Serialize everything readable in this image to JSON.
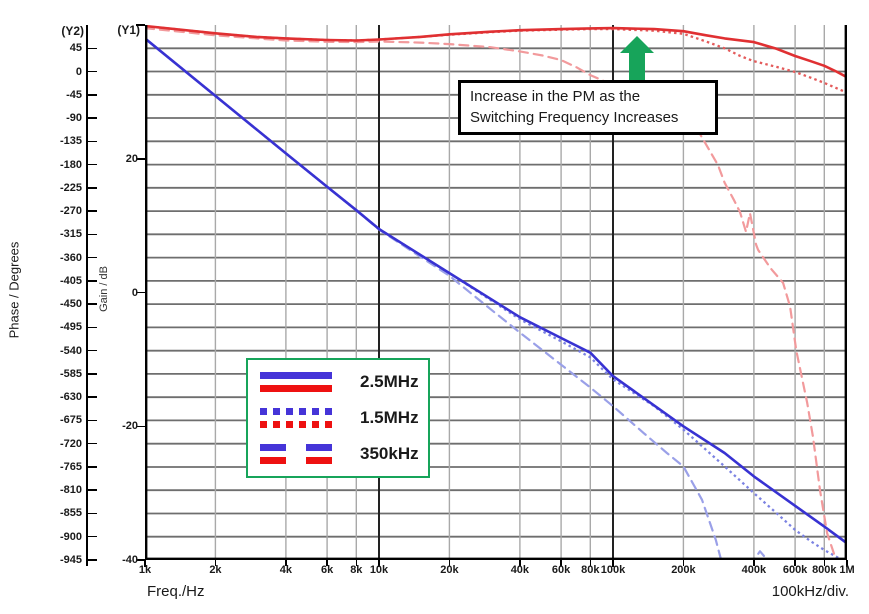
{
  "figure": {
    "y2_header": "(Y2)",
    "y1_header": "(Y1)",
    "phase_axis_title": "Phase / Degrees",
    "gain_axis_title": "Gain / dB",
    "x_axis_title": "Freq./Hz",
    "x_div_note": "100kHz/div."
  },
  "annotation": {
    "line1": "Increase in the PM as the",
    "line2": "Switching Frequency Increases"
  },
  "legend": {
    "entries": [
      {
        "label": "2.5MHz",
        "style": "solid"
      },
      {
        "label": "1.5MHz",
        "style": "dotted"
      },
      {
        "label": "350kHz",
        "style": "dashed"
      }
    ]
  },
  "colors": {
    "legend_blue": "#4534d8",
    "legend_red": "#ee1111",
    "green": "#17a45a",
    "grid_h": "#6e6e6e",
    "grid_v": "#a9a9a9",
    "grid_major": "#222222",
    "axis": "#000000",
    "gain_solid": "#3832d2",
    "gain_dotted": "#7b82e2",
    "gain_dashed": "#9aa0e8",
    "phase_solid": "#e03032",
    "phase_dotted": "#e45b5b",
    "phase_dashed": "#f29a9c"
  },
  "chart_data": {
    "type": "line",
    "title": "",
    "x_axis": {
      "label": "Freq./Hz",
      "scale": "log",
      "min": 1000,
      "max": 1000000,
      "ticks": [
        {
          "label": "1k",
          "f": 1000,
          "major": true
        },
        {
          "label": "2k",
          "f": 2000
        },
        {
          "label": "4k",
          "f": 4000
        },
        {
          "label": "6k",
          "f": 6000
        },
        {
          "label": "8k",
          "f": 8000
        },
        {
          "label": "10k",
          "f": 10000,
          "major": true
        },
        {
          "label": "20k",
          "f": 20000
        },
        {
          "label": "40k",
          "f": 40000
        },
        {
          "label": "60k",
          "f": 60000
        },
        {
          "label": "80k",
          "f": 80000
        },
        {
          "label": "100k",
          "f": 100000,
          "major": true
        },
        {
          "label": "200k",
          "f": 200000
        },
        {
          "label": "400k",
          "f": 400000
        },
        {
          "label": "600k",
          "f": 600000
        },
        {
          "label": "800k",
          "f": 800000
        },
        {
          "label": "1M",
          "f": 1000000,
          "major": true
        }
      ]
    },
    "y1_axis": {
      "label": "Gain / dB",
      "min": -40,
      "max": 40,
      "ticks": [
        {
          "v": 40,
          "label": ""
        },
        {
          "v": 20,
          "label": "20"
        },
        {
          "v": 0,
          "label": "0"
        },
        {
          "v": -20,
          "label": "-20"
        },
        {
          "v": -40,
          "label": "-40"
        }
      ]
    },
    "y2_axis": {
      "label": "Phase / Degrees",
      "min": -945,
      "max": 90,
      "tick_step": 45,
      "tick_values": [
        45,
        0,
        -45,
        -90,
        -135,
        -180,
        -225,
        -270,
        -315,
        -360,
        -405,
        -450,
        -495,
        -540,
        -585,
        -630,
        -675,
        -720,
        -765,
        -810,
        -855,
        -900,
        -945
      ]
    },
    "series": [
      {
        "name": "Gain 350kHz",
        "legend": "350kHz",
        "axis": "gain",
        "style": "dashed",
        "color": "#9aa0e8",
        "points": [
          [
            1000,
            38
          ],
          [
            2000,
            29.4
          ],
          [
            4000,
            20.8
          ],
          [
            6000,
            15.8
          ],
          [
            8000,
            12.3
          ],
          [
            10000,
            9.4
          ],
          [
            20000,
            2.5
          ],
          [
            30000,
            -2.5
          ],
          [
            40000,
            -6
          ],
          [
            60000,
            -10.8
          ],
          [
            80000,
            -14.2
          ],
          [
            100000,
            -17
          ],
          [
            135000,
            -21
          ],
          [
            170000,
            -24
          ],
          [
            200000,
            -26
          ],
          [
            240000,
            -31
          ],
          [
            275000,
            -37
          ],
          [
            295000,
            -41
          ],
          [
            340000,
            -43.5
          ],
          [
            385000,
            -40.8
          ],
          [
            425000,
            -38.7
          ],
          [
            470000,
            -40.5
          ],
          [
            510000,
            -44
          ]
        ]
      },
      {
        "name": "Gain 1.5MHz",
        "legend": "1.5MHz",
        "axis": "gain",
        "style": "dotted",
        "color": "#7b82e2",
        "points": [
          [
            1000,
            38
          ],
          [
            2000,
            29.4
          ],
          [
            4000,
            20.8
          ],
          [
            6000,
            15.8
          ],
          [
            8000,
            12.3
          ],
          [
            10000,
            9.5
          ],
          [
            20000,
            2.9
          ],
          [
            40000,
            -4
          ],
          [
            60000,
            -7.3
          ],
          [
            80000,
            -9.7
          ],
          [
            100000,
            -13
          ],
          [
            150000,
            -17
          ],
          [
            200000,
            -20.5
          ],
          [
            300000,
            -26
          ],
          [
            400000,
            -30
          ],
          [
            500000,
            -33
          ],
          [
            600000,
            -35.5
          ],
          [
            700000,
            -37.2
          ],
          [
            800000,
            -38.5
          ],
          [
            900000,
            -39.5
          ],
          [
            1000000,
            -40.5
          ]
        ]
      },
      {
        "name": "Gain 2.5MHz",
        "legend": "2.5MHz",
        "axis": "gain",
        "style": "solid",
        "color": "#3832d2",
        "points": [
          [
            1000,
            38
          ],
          [
            2000,
            29.4
          ],
          [
            4000,
            20.8
          ],
          [
            6000,
            15.8
          ],
          [
            8000,
            12.3
          ],
          [
            10000,
            9.5
          ],
          [
            20000,
            2.9
          ],
          [
            40000,
            -3.7
          ],
          [
            60000,
            -6.8
          ],
          [
            80000,
            -9
          ],
          [
            100000,
            -12.5
          ],
          [
            200000,
            -20
          ],
          [
            300000,
            -24
          ],
          [
            400000,
            -27.5
          ],
          [
            600000,
            -31.9
          ],
          [
            800000,
            -35
          ],
          [
            1000000,
            -37.5
          ]
        ]
      },
      {
        "name": "Phase 350kHz",
        "legend": "350kHz",
        "axis": "phase",
        "style": "dashed",
        "color": "#f29a9c",
        "points": [
          [
            1000,
            84
          ],
          [
            2000,
            70
          ],
          [
            3000,
            64
          ],
          [
            4000,
            60
          ],
          [
            6000,
            57.5
          ],
          [
            8000,
            57
          ],
          [
            10000,
            58
          ],
          [
            15000,
            56
          ],
          [
            20000,
            53
          ],
          [
            30000,
            47
          ],
          [
            40000,
            39
          ],
          [
            50000,
            31
          ],
          [
            60000,
            22
          ],
          [
            70000,
            8
          ],
          [
            80000,
            -7
          ],
          [
            100000,
            -26
          ],
          [
            120000,
            -42
          ],
          [
            140000,
            -55
          ],
          [
            180000,
            -84
          ],
          [
            230000,
            -113
          ],
          [
            281000,
            -181
          ],
          [
            300000,
            -215
          ],
          [
            330000,
            -250
          ],
          [
            349000,
            -272
          ],
          [
            370000,
            -310
          ],
          [
            385000,
            -274
          ],
          [
            409000,
            -335
          ],
          [
            417000,
            -345
          ],
          [
            470000,
            -380
          ],
          [
            533000,
            -409
          ],
          [
            571000,
            -455
          ],
          [
            607000,
            -540
          ],
          [
            676000,
            -641
          ],
          [
            716000,
            -707
          ],
          [
            767000,
            -810
          ],
          [
            822000,
            -893
          ],
          [
            898000,
            -945
          ],
          [
            920000,
            -980
          ]
        ]
      },
      {
        "name": "Phase 1.5MHz",
        "legend": "1.5MHz",
        "axis": "phase",
        "style": "dotted",
        "color": "#e45b5b",
        "points": [
          [
            1000,
            88
          ],
          [
            2000,
            74
          ],
          [
            3000,
            67
          ],
          [
            4000,
            64
          ],
          [
            6000,
            61
          ],
          [
            8000,
            60
          ],
          [
            10000,
            62
          ],
          [
            15000,
            67
          ],
          [
            20000,
            71
          ],
          [
            30000,
            76
          ],
          [
            40000,
            79
          ],
          [
            60000,
            81
          ],
          [
            80000,
            82
          ],
          [
            100000,
            82
          ],
          [
            150000,
            79
          ],
          [
            200000,
            73
          ],
          [
            250000,
            58
          ],
          [
            300000,
            45
          ],
          [
            350000,
            30
          ],
          [
            400000,
            20
          ],
          [
            500000,
            9
          ],
          [
            600000,
            -1
          ],
          [
            700000,
            -12
          ],
          [
            800000,
            -22
          ],
          [
            900000,
            -32
          ],
          [
            1000000,
            -41
          ]
        ]
      },
      {
        "name": "Phase 2.5MHz",
        "legend": "2.5MHz",
        "axis": "phase",
        "style": "solid",
        "color": "#e03032",
        "points": [
          [
            1000,
            88
          ],
          [
            2000,
            74
          ],
          [
            3000,
            67
          ],
          [
            4000,
            64
          ],
          [
            6000,
            61
          ],
          [
            8000,
            60
          ],
          [
            10000,
            62
          ],
          [
            15000,
            67
          ],
          [
            20000,
            72
          ],
          [
            30000,
            77
          ],
          [
            40000,
            80
          ],
          [
            60000,
            82
          ],
          [
            80000,
            83.5
          ],
          [
            100000,
            84
          ],
          [
            150000,
            82
          ],
          [
            200000,
            78
          ],
          [
            250000,
            70
          ],
          [
            300000,
            64
          ],
          [
            400000,
            57
          ],
          [
            500000,
            44
          ],
          [
            600000,
            30
          ],
          [
            700000,
            20
          ],
          [
            800000,
            11
          ],
          [
            900000,
            0
          ],
          [
            1000000,
            -11
          ]
        ]
      }
    ]
  }
}
